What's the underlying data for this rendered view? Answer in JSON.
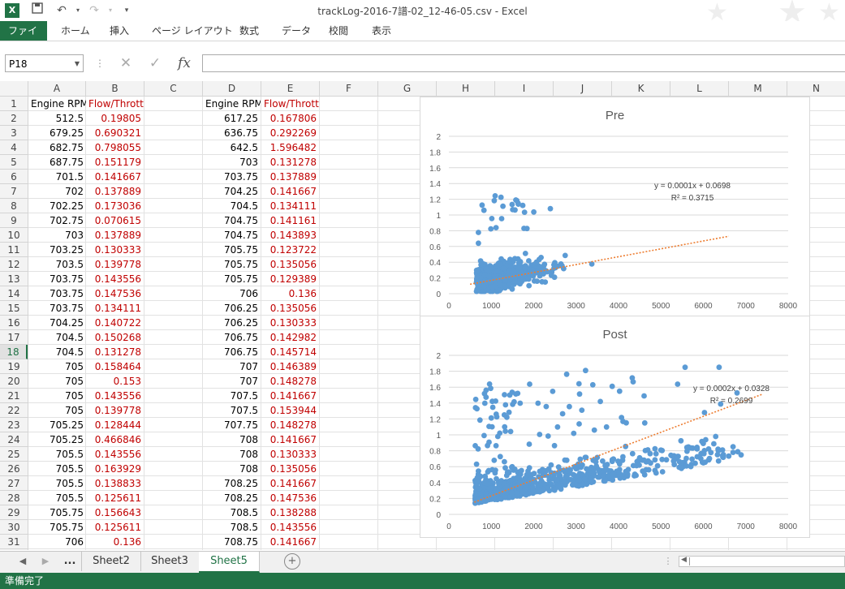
{
  "window": {
    "title": "trackLog-2016-7譜-02_12-46-05.csv - Excel"
  },
  "quick_access": {
    "logo_text": "X"
  },
  "ribbon": {
    "tabs": [
      "ファイル",
      "ホーム",
      "挿入",
      "ページ レイアウト",
      "数式",
      "データ",
      "校閲",
      "表示"
    ]
  },
  "formula_bar": {
    "name_box": "P18",
    "formula": "",
    "fx": "fx",
    "cancel": "✕",
    "enter": "✓"
  },
  "columns": [
    "A",
    "B",
    "C",
    "D",
    "E",
    "F",
    "G",
    "H",
    "I",
    "J",
    "K",
    "L",
    "M",
    "N"
  ],
  "rows": [
    "1",
    "2",
    "3",
    "4",
    "5",
    "6",
    "7",
    "8",
    "9",
    "10",
    "11",
    "12",
    "13",
    "14",
    "15",
    "16",
    "17",
    "18",
    "19",
    "20",
    "21",
    "22",
    "23",
    "24",
    "25",
    "26",
    "27",
    "28",
    "29",
    "30",
    "31"
  ],
  "selected_row": "18",
  "sheet": {
    "headers": {
      "A": "Engine RPM",
      "B": "Flow/Throttle",
      "D": "Engine RPM",
      "E": "Flow/Throttle"
    },
    "colA": [
      "512.5",
      "679.25",
      "682.75",
      "687.75",
      "701.5",
      "702",
      "702.25",
      "702.75",
      "703",
      "703.25",
      "703.5",
      "703.75",
      "703.75",
      "703.75",
      "704.25",
      "704.5",
      "704.5",
      "705",
      "705",
      "705",
      "705",
      "705.25",
      "705.25",
      "705.5",
      "705.5",
      "705.5",
      "705.5",
      "705.75",
      "705.75",
      "706"
    ],
    "colB": [
      "0.19805",
      "0.690321",
      "0.798055",
      "0.151179",
      "0.141667",
      "0.137889",
      "0.173036",
      "0.070615",
      "0.137889",
      "0.130333",
      "0.139778",
      "0.143556",
      "0.147536",
      "0.134111",
      "0.140722",
      "0.150268",
      "0.131278",
      "0.158464",
      "0.153",
      "0.143556",
      "0.139778",
      "0.128444",
      "0.466846",
      "0.143556",
      "0.163929",
      "0.138833",
      "0.125611",
      "0.156643",
      "0.125611",
      "0.136"
    ],
    "colD": [
      "617.25",
      "636.75",
      "642.5",
      "703",
      "703.75",
      "704.25",
      "704.5",
      "704.75",
      "704.75",
      "705.75",
      "705.75",
      "705.75",
      "706",
      "706.25",
      "706.25",
      "706.75",
      "706.75",
      "707",
      "707",
      "707.5",
      "707.5",
      "707.75",
      "708",
      "708",
      "708",
      "708.25",
      "708.25",
      "708.5",
      "708.5",
      "708.75"
    ],
    "colE": [
      "0.167806",
      "0.292269",
      "1.596482",
      "0.131278",
      "0.137889",
      "0.141667",
      "0.134111",
      "0.141161",
      "0.143893",
      "0.123722",
      "0.135056",
      "0.129389",
      "0.136",
      "0.135056",
      "0.130333",
      "0.142982",
      "0.145714",
      "0.146389",
      "0.148278",
      "0.141667",
      "0.153944",
      "0.148278",
      "0.141667",
      "0.130333",
      "0.135056",
      "0.141667",
      "0.147536",
      "0.138288",
      "0.143556",
      "0.141667"
    ]
  },
  "chart_data": [
    {
      "type": "scatter",
      "title": "Pre",
      "xlim": [
        0,
        8000
      ],
      "ylim": [
        0,
        2
      ],
      "xticks": [
        "0",
        "1000",
        "2000",
        "3000",
        "4000",
        "5000",
        "6000",
        "7000",
        "8000"
      ],
      "yticks": [
        "0",
        "0.2",
        "0.4",
        "0.6",
        "0.8",
        "1",
        "1.2",
        "1.4",
        "1.6",
        "1.8",
        "2"
      ],
      "grid": true,
      "trendline": {
        "slope": 0.0001,
        "intercept": 0.0698,
        "x_range": [
          500,
          6600
        ]
      },
      "annotations": [
        "y = 0.0001x + 0.0698",
        "R² = 0.3715"
      ],
      "color": "#5b9bd5",
      "trend_color": "#ed7d31"
    },
    {
      "type": "scatter",
      "title": "Post",
      "xlim": [
        0,
        8000
      ],
      "ylim": [
        0,
        2
      ],
      "xticks": [
        "0",
        "1000",
        "2000",
        "3000",
        "4000",
        "5000",
        "6000",
        "7000",
        "8000"
      ],
      "yticks": [
        "0",
        "0.2",
        "0.4",
        "0.6",
        "0.8",
        "1",
        "1.2",
        "1.4",
        "1.6",
        "1.8",
        "2"
      ],
      "grid": true,
      "trendline": {
        "slope": 0.0002,
        "intercept": 0.0328,
        "x_range": [
          600,
          7400
        ]
      },
      "annotations": [
        "y = 0.0002x + 0.0328",
        "R² = 0.2699"
      ],
      "color": "#5b9bd5",
      "trend_color": "#ed7d31"
    }
  ],
  "sheet_tabs": {
    "more": "...",
    "tabs": [
      "Sheet2",
      "Sheet3",
      "Sheet5"
    ],
    "active": "Sheet5",
    "add": "+"
  },
  "status_bar": {
    "text": "準備完了"
  }
}
